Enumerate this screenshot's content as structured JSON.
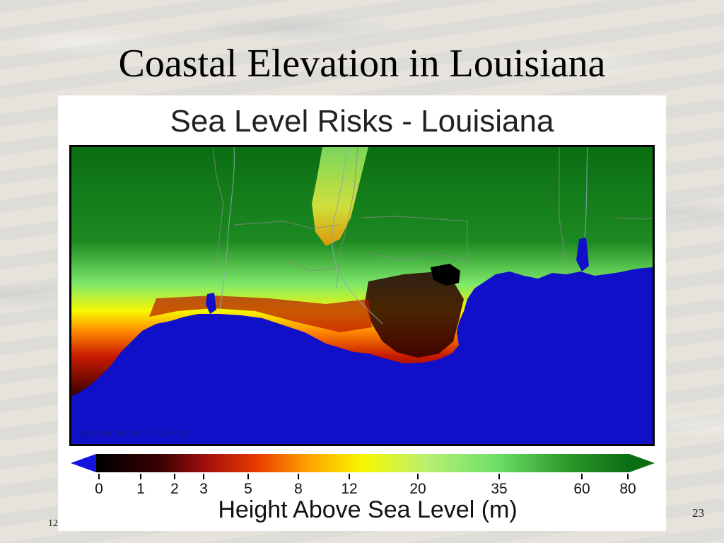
{
  "slide": {
    "title": "Coastal Elevation in Louisiana",
    "page_number": "23",
    "footer_left": "12"
  },
  "map": {
    "title": "Sea Level Risks - Louisiana",
    "credit": "Based on SRTM30 PLUS v. 2.0",
    "legend": {
      "label": "Height Above Sea Level (m)",
      "ticks": [
        "0",
        "1",
        "2",
        "3",
        "5",
        "8",
        "12",
        "20",
        "35",
        "60",
        "80"
      ]
    },
    "colors": {
      "water": "#1010c8",
      "lowest": "#000000",
      "low": "#9e0e0e",
      "mid_low": "#e83a00",
      "mid": "#ffa500",
      "mid_high": "#f7f700",
      "high": "#7ee86a",
      "highest": "#0a6e12"
    }
  }
}
